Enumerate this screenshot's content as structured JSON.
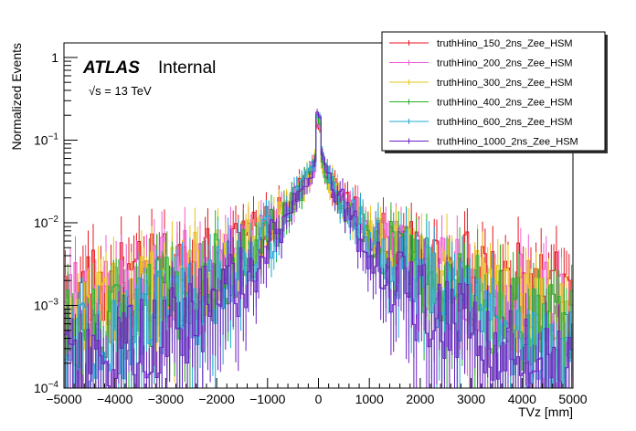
{
  "chart_data": {
    "type": "line",
    "style": "step-histogram",
    "title": "",
    "xlabel": "TVz [mm]",
    "ylabel": "Normalized Events",
    "xlim": [
      -5000,
      5000
    ],
    "ylim": [
      0.0001,
      1.5
    ],
    "yscale": "log",
    "bin_width": 50,
    "x_ticks": [
      -5000,
      -4000,
      -3000,
      -2000,
      -1000,
      0,
      1000,
      2000,
      3000,
      4000,
      5000
    ],
    "x_tick_labels": [
      "−5000",
      "−4000",
      "−3000",
      "−2000",
      "−1000",
      "0",
      "1000",
      "2000",
      "3000",
      "4000",
      "5000"
    ],
    "y_ticks": [
      {
        "value": 0.0001,
        "base": "10",
        "exp": "−4"
      },
      {
        "value": 0.001,
        "base": "10",
        "exp": "−3"
      },
      {
        "value": 0.01,
        "base": "10",
        "exp": "−2"
      },
      {
        "value": 0.1,
        "base": "10",
        "exp": "−1"
      },
      {
        "value": 1,
        "base": "1",
        "exp": ""
      }
    ],
    "legend_position": "top-right",
    "annotations": {
      "experiment": "ATLAS",
      "status": "Internal",
      "energy_sqrt": "√s",
      "energy_rest": " = 13 TeV"
    },
    "series": [
      {
        "name": "truthHino_150_2ns_Zee_HSM",
        "color": "#e5161c",
        "peak": 0.155,
        "x": [
          0,
          25,
          100,
          250,
          500,
          1000,
          1500,
          2000,
          2500,
          3000,
          3500,
          4000,
          4500,
          5000
        ],
        "values": [
          0.155,
          0.07,
          0.045,
          0.03,
          0.018,
          0.0085,
          0.0052,
          0.0038,
          0.0028,
          0.0022,
          0.0018,
          0.0015,
          0.0013,
          0.0012
        ]
      },
      {
        "name": "truthHino_200_2ns_Zee_HSM",
        "color": "#ee5cd3",
        "peak": 0.16,
        "x": [
          0,
          25,
          100,
          250,
          500,
          1000,
          1500,
          2000,
          2500,
          3000,
          3500,
          4000,
          4500,
          5000
        ],
        "values": [
          0.16,
          0.068,
          0.045,
          0.03,
          0.018,
          0.0082,
          0.0048,
          0.0033,
          0.0025,
          0.0019,
          0.0015,
          0.0012,
          0.001,
          0.0009
        ]
      },
      {
        "name": "truthHino_300_2ns_Zee_HSM",
        "color": "#e8c614",
        "peak": 0.17,
        "x": [
          0,
          25,
          100,
          250,
          500,
          1000,
          1500,
          2000,
          2500,
          3000,
          3500,
          4000,
          4500,
          5000
        ],
        "values": [
          0.17,
          0.07,
          0.046,
          0.03,
          0.017,
          0.0075,
          0.0042,
          0.0028,
          0.002,
          0.0015,
          0.0011,
          0.0009,
          0.0007,
          0.0006
        ]
      },
      {
        "name": "truthHino_400_2ns_Zee_HSM",
        "color": "#22b022",
        "peak": 0.18,
        "x": [
          0,
          25,
          100,
          250,
          500,
          1000,
          1500,
          2000,
          2500,
          3000,
          3500,
          4000,
          4500,
          5000
        ],
        "values": [
          0.18,
          0.072,
          0.047,
          0.03,
          0.017,
          0.007,
          0.0037,
          0.0024,
          0.0016,
          0.0012,
          0.0009,
          0.0006,
          0.0005,
          0.0004
        ]
      },
      {
        "name": "truthHino_600_2ns_Zee_HSM",
        "color": "#1ea8d6",
        "peak": 0.19,
        "x": [
          0,
          25,
          100,
          250,
          500,
          1000,
          1500,
          2000,
          2500,
          3000,
          3500,
          4000,
          4500,
          5000
        ],
        "values": [
          0.19,
          0.075,
          0.048,
          0.03,
          0.016,
          0.0062,
          0.003,
          0.0017,
          0.0011,
          0.0008,
          0.0006,
          0.0004,
          0.0003,
          0.00025
        ]
      },
      {
        "name": "truthHino_1000_2ns_Zee_HSM",
        "color": "#6a1fc2",
        "peak": 0.2,
        "x": [
          0,
          25,
          100,
          250,
          500,
          1000,
          1500,
          2000,
          2500,
          3000,
          3500,
          4000,
          4500,
          5000
        ],
        "values": [
          0.2,
          0.078,
          0.05,
          0.03,
          0.015,
          0.0052,
          0.0022,
          0.0012,
          0.0007,
          0.00045,
          0.00032,
          0.00022,
          0.00016,
          0.00013
        ]
      }
    ]
  }
}
